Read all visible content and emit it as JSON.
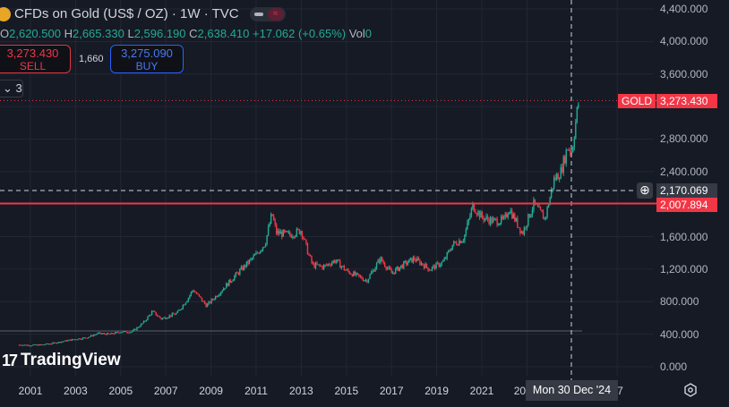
{
  "header": {
    "title": "CFDs on Gold (US$ / OZ) · 1W · TVC",
    "toggle_icon": "≈"
  },
  "ohlc": {
    "o_label": "O",
    "o": "2,620.500",
    "h_label": "H",
    "h": "2,665.330",
    "l_label": "L",
    "l": "2,596.190",
    "c_label": "C",
    "c": "2,638.410",
    "change": "+17.062 (+0.65%)",
    "vol_label": "Vol",
    "vol": "0"
  },
  "trade": {
    "sell_price": "3,273.430",
    "sell_label": "SELL",
    "spread": "1,660",
    "buy_price": "3,275.090",
    "buy_label": "BUY"
  },
  "indicators": {
    "collapse_count": "3"
  },
  "price_tags": {
    "symbol": "GOLD",
    "last": "3,273.430",
    "crosshair": "2,170.069",
    "line": "2,007.894"
  },
  "crosshair_date": "Mon 30 Dec '24",
  "logo": "TradingView",
  "colors": {
    "up": "#22ab94",
    "down": "#f23645",
    "bg": "#161a25",
    "accent": "#2962ff"
  },
  "chart_data": {
    "type": "candlestick",
    "title": "CFDs on Gold (US$ / OZ) · 1W · TVC",
    "y_ticks": [
      "4,400.000",
      "4,000.000",
      "3,600.000",
      "2,800.000",
      "2,400.000",
      "1,600.000",
      "1,200.000",
      "800.000",
      "400.000",
      "0.000"
    ],
    "y_tick_values": [
      4400,
      4000,
      3600,
      2800,
      2400,
      1600,
      1200,
      800,
      400,
      0
    ],
    "x_ticks": [
      "2001",
      "2003",
      "2005",
      "2007",
      "2009",
      "2011",
      "2013",
      "2015",
      "2017",
      "2019",
      "2021",
      "20",
      "27"
    ],
    "x_tick_years": [
      2001,
      2003,
      2005,
      2007,
      2009,
      2011,
      2013,
      2015,
      2017,
      2019,
      2021,
      2023,
      2027
    ],
    "ylim": [
      0,
      4400
    ],
    "horizontal_lines": [
      2007.894,
      2170.069,
      440
    ],
    "series": {
      "name": "Gold",
      "x": [
        2000.5,
        2001,
        2001.5,
        2002,
        2002.5,
        2003,
        2003.5,
        2004,
        2004.5,
        2005,
        2005.5,
        2006,
        2006.4,
        2006.8,
        2007.5,
        2008,
        2008.2,
        2008.8,
        2009.5,
        2010,
        2010.5,
        2011,
        2011.4,
        2011.7,
        2011.9,
        2012.5,
        2013,
        2013.3,
        2013.5,
        2014,
        2014.5,
        2015,
        2015.9,
        2016.5,
        2017,
        2017.5,
        2018,
        2018.7,
        2019.3,
        2019.7,
        2020.2,
        2020.6,
        2021,
        2021.5,
        2022,
        2022.2,
        2022.8,
        2023.3,
        2023.8,
        2024.2,
        2024.5,
        2024.8,
        2025,
        2025.2,
        2025.3
      ],
      "values": [
        270,
        265,
        270,
        290,
        315,
        340,
        360,
        410,
        400,
        430,
        430,
        540,
        680,
        590,
        660,
        850,
        950,
        750,
        950,
        1100,
        1240,
        1380,
        1520,
        1880,
        1650,
        1620,
        1680,
        1400,
        1250,
        1230,
        1310,
        1180,
        1060,
        1330,
        1150,
        1250,
        1330,
        1200,
        1290,
        1500,
        1580,
        1980,
        1840,
        1790,
        1800,
        1950,
        1640,
        2000,
        1820,
        2300,
        2400,
        2700,
        2650,
        3100,
        3273
      ]
    }
  }
}
